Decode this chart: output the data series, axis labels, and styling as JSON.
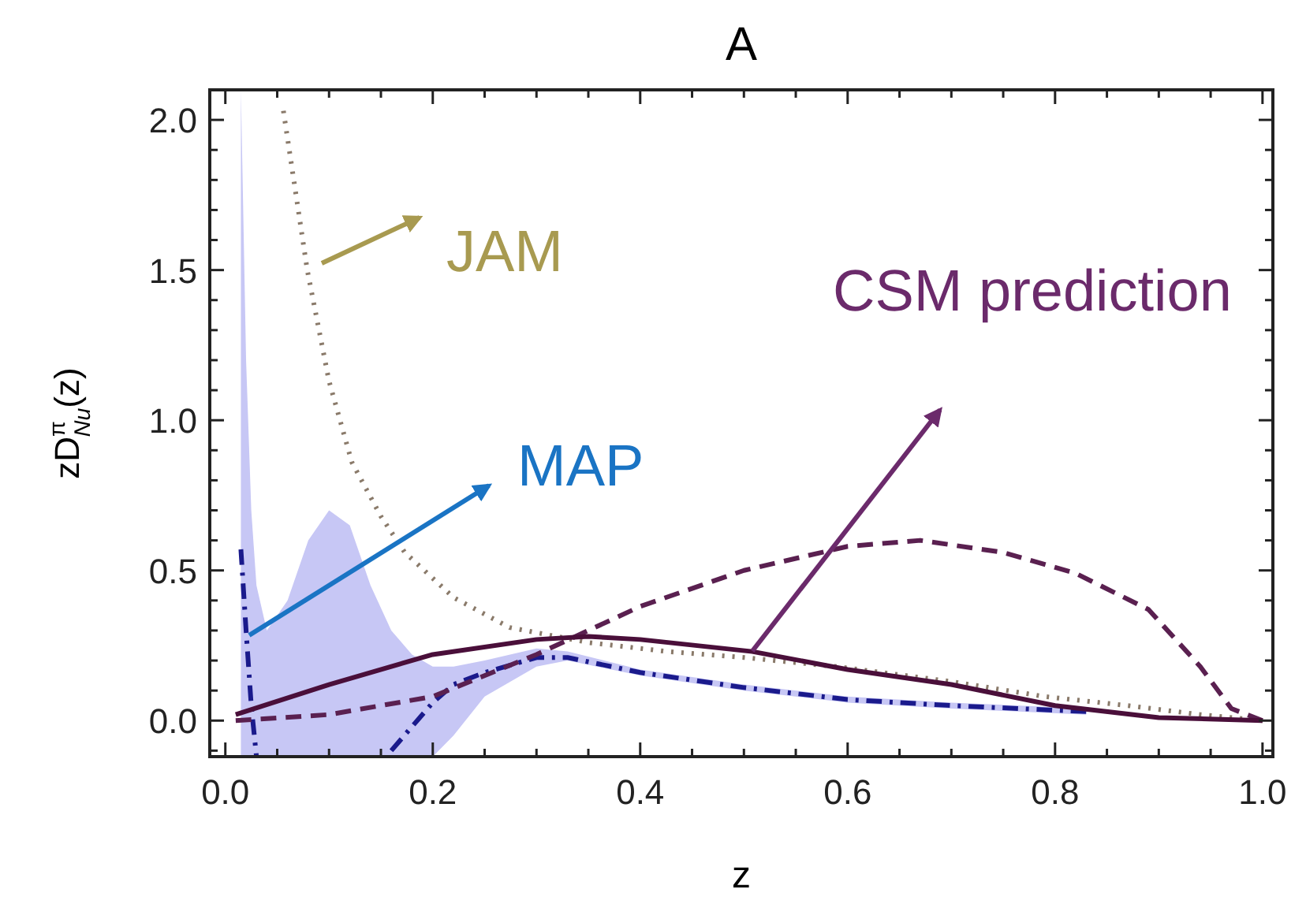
{
  "chart_data": {
    "type": "line",
    "title": "A",
    "xlabel": "z",
    "ylabel": "zD$^{π}$$_{Nu}$(z)",
    "xlim": [
      -0.015,
      1.01
    ],
    "ylim": [
      -0.12,
      2.1
    ],
    "xticks": [
      {
        "value": 0,
        "label": "0.0"
      },
      {
        "value": 0.05,
        "label": null
      },
      {
        "value": 0.1,
        "label": null
      },
      {
        "value": 0.15,
        "label": null
      },
      {
        "value": 0.2,
        "label": "0.2"
      },
      {
        "value": 0.25,
        "label": null
      },
      {
        "value": 0.3,
        "label": null
      },
      {
        "value": 0.35,
        "label": null
      },
      {
        "value": 0.4,
        "label": "0.4"
      },
      {
        "value": 0.45,
        "label": null
      },
      {
        "value": 0.5,
        "label": null
      },
      {
        "value": 0.55,
        "label": null
      },
      {
        "value": 0.6,
        "label": "0.6"
      },
      {
        "value": 0.65,
        "label": null
      },
      {
        "value": 0.7,
        "label": null
      },
      {
        "value": 0.75,
        "label": null
      },
      {
        "value": 0.8,
        "label": "0.8"
      },
      {
        "value": 0.85,
        "label": null
      },
      {
        "value": 0.9,
        "label": null
      },
      {
        "value": 0.95,
        "label": null
      },
      {
        "value": 1,
        "label": "1.0"
      }
    ],
    "yticks": [
      {
        "value": -0.1,
        "label": null
      },
      {
        "value": 0,
        "label": "0.0"
      },
      {
        "value": 0.1,
        "label": null
      },
      {
        "value": 0.2,
        "label": null
      },
      {
        "value": 0.3,
        "label": null
      },
      {
        "value": 0.4,
        "label": null
      },
      {
        "value": 0.5,
        "label": "0.5"
      },
      {
        "value": 0.6,
        "label": null
      },
      {
        "value": 0.7,
        "label": null
      },
      {
        "value": 0.8,
        "label": null
      },
      {
        "value": 0.9,
        "label": null
      },
      {
        "value": 1,
        "label": "1.0"
      },
      {
        "value": 1.1,
        "label": null
      },
      {
        "value": 1.2,
        "label": null
      },
      {
        "value": 1.3,
        "label": null
      },
      {
        "value": 1.4,
        "label": null
      },
      {
        "value": 1.5,
        "label": "1.5"
      },
      {
        "value": 1.6,
        "label": null
      },
      {
        "value": 1.7,
        "label": null
      },
      {
        "value": 1.8,
        "label": null
      },
      {
        "value": 1.9,
        "label": null
      },
      {
        "value": 2,
        "label": "2.0"
      }
    ],
    "grid": false,
    "series": [
      {
        "color": "#1a1a8c",
        "line_style": "dashdot",
        "x": [
          0.015,
          0.02,
          0.025,
          0.03,
          0.04,
          0.06,
          0.08,
          0.1,
          0.12,
          0.14,
          0.16,
          0.18,
          0.2,
          0.22,
          0.25,
          0.3,
          0.33,
          0.4,
          0.5,
          0.6,
          0.7,
          0.83
        ],
        "values": [
          0.57,
          0.3,
          0.05,
          -0.12,
          null,
          null,
          null,
          null,
          null,
          null,
          -0.1,
          -0.02,
          0.06,
          0.12,
          0.16,
          0.21,
          0.21,
          0.16,
          0.11,
          0.07,
          0.05,
          0.03
        ],
        "upper": [
          2.1,
          1.2,
          0.7,
          0.45,
          0.3,
          0.4,
          0.6,
          0.7,
          0.65,
          0.45,
          0.3,
          0.22,
          0.18,
          0.18,
          0.2,
          0.24,
          0.23,
          0.17,
          0.12,
          0.08,
          0.06,
          0.04
        ],
        "lower": [
          -0.12,
          -0.12,
          -0.12,
          -0.12,
          -0.12,
          -0.12,
          -0.12,
          -0.12,
          -0.12,
          -0.12,
          -0.12,
          -0.12,
          -0.12,
          -0.05,
          0.08,
          0.18,
          0.2,
          0.15,
          0.1,
          0.06,
          0.04,
          0.02
        ]
      },
      {
        "color": "#8a7a6a",
        "line_style": "dotted",
        "x": [
          0.056,
          0.079,
          0.1,
          0.122,
          0.15,
          0.173,
          0.22,
          0.274,
          0.35,
          0.426,
          0.5,
          0.589,
          0.7,
          0.79,
          0.87,
          0.94,
          1.0
        ],
        "values": [
          2.03,
          1.5,
          1.13,
          0.86,
          0.68,
          0.56,
          0.41,
          0.31,
          0.26,
          0.23,
          0.21,
          0.18,
          0.13,
          0.08,
          0.05,
          0.02,
          0.0
        ]
      },
      {
        "color": "#5a2050",
        "line_style": "dashed",
        "x": [
          0.01,
          0.1,
          0.2,
          0.3,
          0.4,
          0.5,
          0.6,
          0.67,
          0.75,
          0.82,
          0.89,
          0.94,
          0.97,
          1.0
        ],
        "values": [
          0.0,
          0.02,
          0.08,
          0.22,
          0.38,
          0.5,
          0.58,
          0.6,
          0.56,
          0.49,
          0.37,
          0.18,
          0.04,
          0.0
        ]
      },
      {
        "color": "#4a0f3a",
        "line_style": "solid",
        "x": [
          0.01,
          0.1,
          0.2,
          0.3,
          0.35,
          0.4,
          0.508,
          0.6,
          0.7,
          0.8,
          0.9,
          1.0
        ],
        "values": [
          0.02,
          0.12,
          0.22,
          0.27,
          0.28,
          0.27,
          0.23,
          0.17,
          0.12,
          0.05,
          0.01,
          0.0
        ]
      }
    ],
    "annotations": [
      "JAM",
      "MAP",
      "CSM prediction"
    ]
  }
}
